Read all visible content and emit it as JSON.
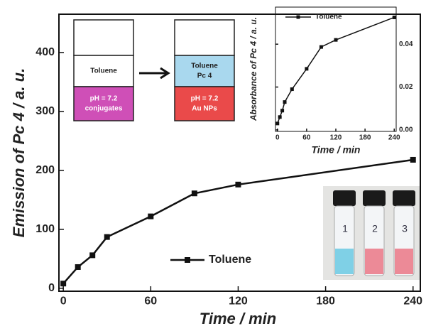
{
  "chart_data": [
    {
      "type": "line",
      "x_label": "Time / min",
      "y_label": "Emission of Pc 4 / a. u.",
      "x": [
        0,
        10,
        20,
        30,
        60,
        90,
        120,
        240
      ],
      "series": [
        {
          "name": "Toluene",
          "color": "#111111",
          "values": [
            8,
            36,
            56,
            87,
            122,
            161,
            176,
            218
          ]
        }
      ],
      "xlim": [
        -3,
        245
      ],
      "ylim": [
        -5,
        465
      ],
      "xticks": [
        0,
        60,
        120,
        180,
        240
      ],
      "yticks": [
        0,
        100,
        200,
        300,
        400
      ],
      "grid": false,
      "legend": "bottom-center"
    },
    {
      "type": "line",
      "x_label": "Time / min",
      "y_label": "Absorbance of Pc 4 / a. u.",
      "x": [
        0,
        5,
        10,
        15,
        30,
        60,
        90,
        120,
        240
      ],
      "series": [
        {
          "name": "Toluene",
          "color": "#111111",
          "values": [
            0.003,
            0.006,
            0.009,
            0.013,
            0.019,
            0.0285,
            0.0387,
            0.042,
            0.0525
          ]
        }
      ],
      "xlim": [
        -4,
        244
      ],
      "ylim": [
        -0.0007,
        0.0573
      ],
      "xticks": [
        0,
        60,
        120,
        180,
        240
      ],
      "yticks": [
        {
          "value": 0,
          "label": "0.00"
        },
        {
          "value": 0.02,
          "label": "0.02"
        },
        {
          "value": 0.04,
          "label": "0.04"
        }
      ],
      "grid": false,
      "legend": "top-left"
    }
  ],
  "diagram": {
    "before": {
      "top": "Toluene",
      "bottom": [
        "pH = 7.2",
        "conjugates"
      ]
    },
    "after": {
      "top": [
        "Toluene",
        "Pc 4"
      ],
      "bottom": [
        "pH = 7.2",
        "Au NPs"
      ]
    }
  },
  "photo": {
    "labels": [
      "1",
      "2",
      "3"
    ]
  }
}
